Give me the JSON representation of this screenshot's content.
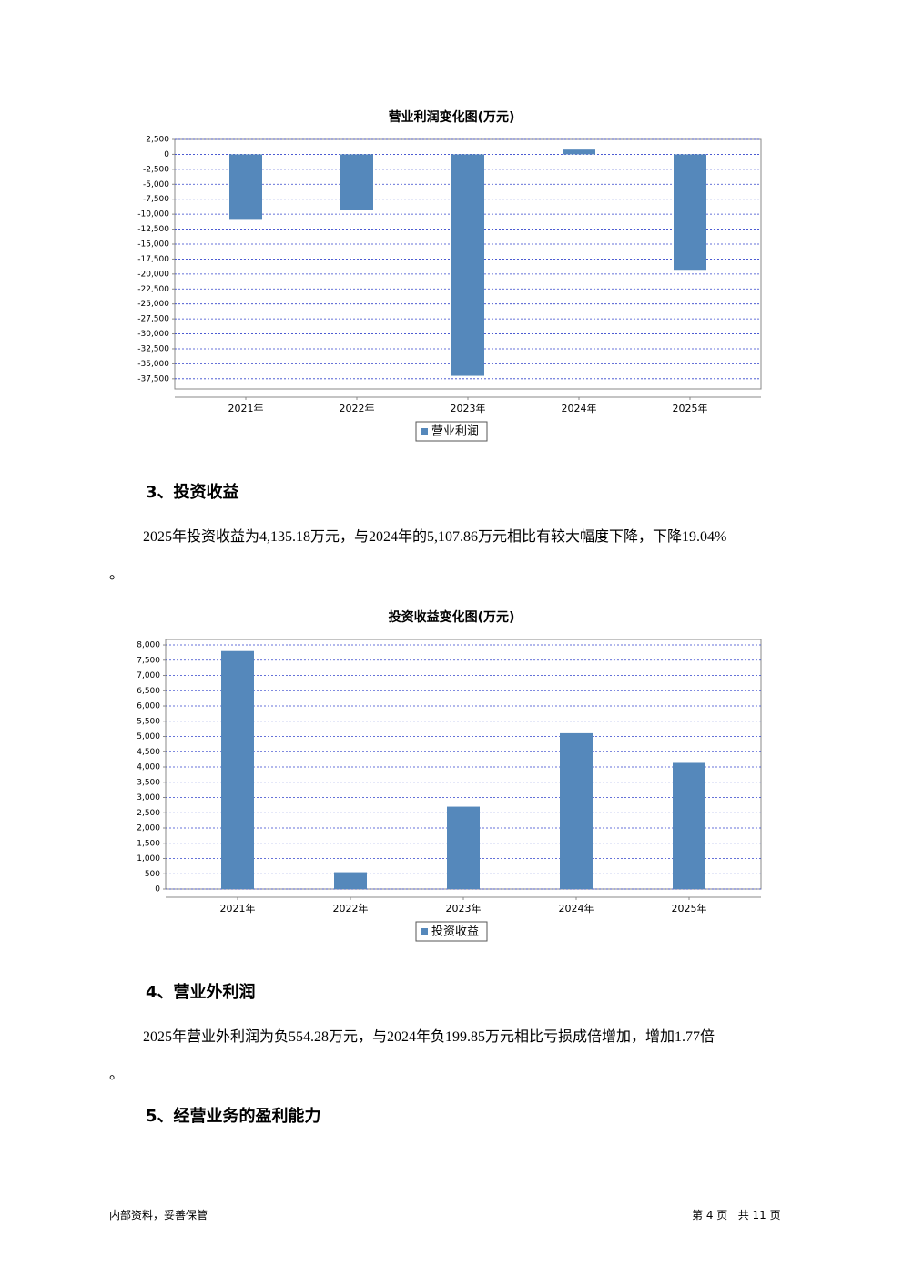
{
  "chart_data": [
    {
      "type": "bar",
      "title": "营业利润变化图(万元)",
      "categories": [
        "2021年",
        "2022年",
        "2023年",
        "2024年",
        "2025年"
      ],
      "series": [
        {
          "name": "营业利润",
          "color": "#5588bb",
          "values": [
            -10800,
            -9300,
            -37000,
            800,
            -19300
          ]
        }
      ],
      "ylim": [
        -39200,
        2500
      ],
      "yticks": [
        {
          "value": 2500,
          "label": "2,500"
        },
        0,
        {
          "value": -2500,
          "label": "-2,500"
        },
        {
          "value": -5000,
          "label": "-5,000"
        },
        {
          "value": -7500,
          "label": "-7,500"
        },
        {
          "value": -10000,
          "label": "-10,000"
        },
        {
          "value": -12500,
          "label": "-12,500"
        },
        {
          "value": -15000,
          "label": "-15,000"
        },
        {
          "value": -17500,
          "label": "-17,500"
        },
        {
          "value": -20000,
          "label": "-20,000"
        },
        {
          "value": -22500,
          "label": "-22,500"
        },
        {
          "value": -25000,
          "label": "-25,000"
        },
        {
          "value": -27500,
          "label": "-27,500"
        },
        {
          "value": -30000,
          "label": "-30,000"
        },
        {
          "value": -32500,
          "label": "-32,500"
        },
        {
          "value": -35000,
          "label": "-35,000"
        },
        {
          "value": -37500,
          "label": "-37,500"
        }
      ],
      "grid": true
    },
    {
      "type": "bar",
      "title": "投资收益变化图(万元)",
      "categories": [
        "2021年",
        "2022年",
        "2023年",
        "2024年",
        "2025年"
      ],
      "series": [
        {
          "name": "投资收益",
          "color": "#5588bb",
          "values": [
            7800,
            550,
            2700,
            5107.86,
            4135.18
          ]
        }
      ],
      "ylim": [
        0,
        8180
      ],
      "yticks": [
        0,
        500,
        {
          "value": 1000,
          "label": "1,000"
        },
        {
          "value": 1500,
          "label": "1,500"
        },
        {
          "value": 2000,
          "label": "2,000"
        },
        {
          "value": 2500,
          "label": "2,500"
        },
        {
          "value": 3000,
          "label": "3,000"
        },
        {
          "value": 3500,
          "label": "3,500"
        },
        {
          "value": 4000,
          "label": "4,000"
        },
        {
          "value": 4500,
          "label": "4,500"
        },
        {
          "value": 5000,
          "label": "5,000"
        },
        {
          "value": 5500,
          "label": "5,500"
        },
        {
          "value": 6000,
          "label": "6,000"
        },
        {
          "value": 6500,
          "label": "6,500"
        },
        {
          "value": 7000,
          "label": "7,000"
        },
        {
          "value": 7500,
          "label": "7,500"
        },
        {
          "value": 8000,
          "label": "8,000"
        }
      ],
      "grid": true
    }
  ],
  "sections": [
    {
      "heading": "3、投资收益",
      "text": "2025年投资收益为4,135.18万元，与2024年的5,107.86万元相比有较大幅度下降，下降19.04%",
      "tail": "。"
    },
    {
      "heading": "4、营业外利润",
      "text": "2025年营业外利润为负554.28万元，与2024年负199.85万元相比亏损成倍增加，增加1.77倍",
      "tail": "。"
    },
    {
      "heading": "5、经营业务的盈利能力"
    }
  ],
  "footer": {
    "left": "内部资料，妥善保管",
    "right": "第 4 页   共 11 页"
  }
}
